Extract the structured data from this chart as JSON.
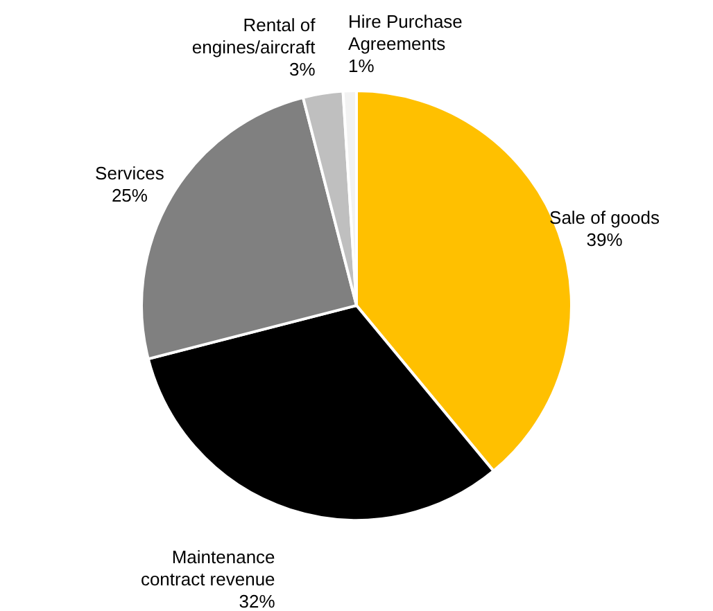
{
  "chart_data": {
    "type": "pie",
    "categories": [
      "Sale of goods",
      "Maintenance contract revenue",
      "Services",
      "Rental of engines/aircraft",
      "Hire Purchase Agreements"
    ],
    "values": [
      39,
      32,
      25,
      3,
      1
    ],
    "colors": [
      "#ffc000",
      "#000000",
      "#808080",
      "#bfbfbf",
      "#f2f2f2"
    ],
    "value_labels": [
      "39%",
      "32%",
      "25%",
      "3%",
      "1%"
    ]
  }
}
